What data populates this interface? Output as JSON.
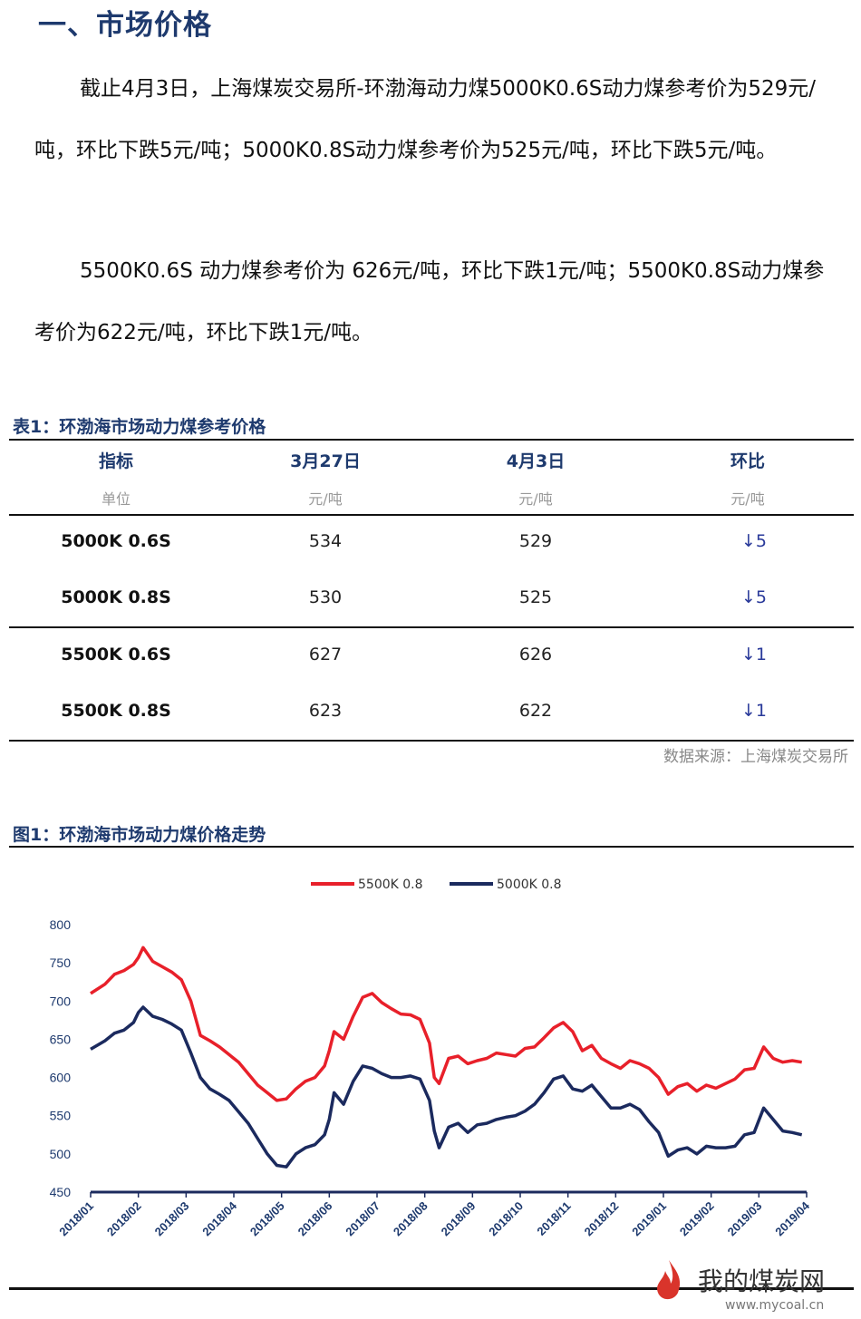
{
  "section_title": "一、市场价格",
  "paragraphs": {
    "p1": "截止4月3日，上海煤炭交易所-环渤海动力煤5000K0.6S动力煤参考价为529元/吨，环比下跌5元/吨；5000K0.8S动力煤参考价为525元/吨，环比下跌5元/吨。",
    "p2": "5500K0.6S 动力煤参考价为 626元/吨，环比下跌1元/吨；5500K0.8S动力煤参考价为622元/吨，环比下跌1元/吨。"
  },
  "table": {
    "caption": "表1：环渤海市场动力煤参考价格",
    "headers": [
      "指标",
      "3月27日",
      "4月3日",
      "环比"
    ],
    "units": [
      "单位",
      "元/吨",
      "元/吨",
      "元/吨"
    ],
    "rows": [
      {
        "name": "5000K 0.6S",
        "prev": "534",
        "curr": "529",
        "change": "↓5"
      },
      {
        "name": "5000K 0.8S",
        "prev": "530",
        "curr": "525",
        "change": "↓5"
      },
      {
        "name": "5500K 0.6S",
        "prev": "627",
        "curr": "626",
        "change": "↓1"
      },
      {
        "name": "5500K 0.8S",
        "prev": "623",
        "curr": "622",
        "change": "↓1"
      }
    ],
    "source": "数据来源：上海煤炭交易所"
  },
  "figure": {
    "caption": "图1：环渤海市场动力煤价格走势",
    "watermark": "我的煤炭网",
    "watermark_url": "www.mycoal.cn"
  },
  "chart_data": {
    "type": "line",
    "title": "",
    "xlabel": "",
    "ylabel": "",
    "ylim": [
      450,
      800
    ],
    "yticks": [
      450,
      500,
      550,
      600,
      650,
      700,
      750,
      800
    ],
    "x_categories": [
      "2018/01",
      "2018/02",
      "2018/03",
      "2018/04",
      "2018/05",
      "2018/06",
      "2018/07",
      "2018/08",
      "2018/09",
      "2018/10",
      "2018/11",
      "2018/12",
      "2019/01",
      "2019/02",
      "2019/03",
      "2019/04"
    ],
    "legend_position": "top",
    "grid": false,
    "series": [
      {
        "name": "5500K 0.8",
        "color": "#e8202a",
        "x": [
          0,
          0.3,
          0.5,
          0.7,
          0.9,
          1.0,
          1.1,
          1.3,
          1.5,
          1.7,
          1.9,
          2.1,
          2.3,
          2.5,
          2.7,
          2.9,
          3.1,
          3.3,
          3.5,
          3.7,
          3.9,
          4.1,
          4.3,
          4.5,
          4.7,
          4.9,
          5.0,
          5.1,
          5.3,
          5.5,
          5.7,
          5.9,
          6.1,
          6.3,
          6.5,
          6.7,
          6.9,
          7.1,
          7.2,
          7.3,
          7.5,
          7.7,
          7.9,
          8.1,
          8.3,
          8.5,
          8.7,
          8.9,
          9.1,
          9.3,
          9.5,
          9.7,
          9.9,
          10.1,
          10.3,
          10.5,
          10.7,
          10.9,
          11.1,
          11.3,
          11.5,
          11.7,
          11.9,
          12.1,
          12.3,
          12.5,
          12.7,
          12.9,
          13.1,
          13.3,
          13.5,
          13.7,
          13.9,
          14.1,
          14.3,
          14.5,
          14.7,
          14.9
        ],
        "values": [
          710,
          722,
          735,
          740,
          748,
          757,
          770,
          752,
          745,
          738,
          728,
          700,
          655,
          648,
          640,
          630,
          620,
          605,
          590,
          580,
          570,
          572,
          585,
          595,
          600,
          615,
          635,
          660,
          650,
          680,
          705,
          710,
          698,
          690,
          683,
          682,
          676,
          645,
          600,
          592,
          625,
          628,
          618,
          622,
          625,
          632,
          630,
          628,
          638,
          640,
          652,
          665,
          672,
          660,
          635,
          642,
          625,
          618,
          612,
          622,
          618,
          612,
          600,
          578,
          588,
          592,
          582,
          590,
          586,
          592,
          598,
          610,
          612,
          640,
          625,
          620,
          622,
          620
        ]
      },
      {
        "name": "5000K 0.8",
        "color": "#1b2a5e",
        "x": [
          0,
          0.3,
          0.5,
          0.7,
          0.9,
          1.0,
          1.1,
          1.3,
          1.5,
          1.7,
          1.9,
          2.1,
          2.3,
          2.5,
          2.7,
          2.9,
          3.1,
          3.3,
          3.5,
          3.7,
          3.9,
          4.1,
          4.3,
          4.5,
          4.7,
          4.9,
          5.0,
          5.1,
          5.3,
          5.5,
          5.7,
          5.9,
          6.1,
          6.3,
          6.5,
          6.7,
          6.9,
          7.1,
          7.2,
          7.3,
          7.5,
          7.7,
          7.9,
          8.1,
          8.3,
          8.5,
          8.7,
          8.9,
          9.1,
          9.3,
          9.5,
          9.7,
          9.9,
          10.1,
          10.3,
          10.5,
          10.7,
          10.9,
          11.1,
          11.3,
          11.5,
          11.7,
          11.9,
          12.1,
          12.3,
          12.5,
          12.7,
          12.9,
          13.1,
          13.3,
          13.5,
          13.7,
          13.9,
          14.1,
          14.3,
          14.5,
          14.7,
          14.9
        ],
        "values": [
          637,
          648,
          658,
          662,
          672,
          685,
          692,
          680,
          676,
          670,
          662,
          632,
          600,
          585,
          578,
          570,
          555,
          540,
          520,
          500,
          485,
          483,
          500,
          508,
          512,
          525,
          545,
          580,
          565,
          595,
          615,
          612,
          605,
          600,
          600,
          602,
          598,
          570,
          530,
          508,
          535,
          540,
          528,
          538,
          540,
          545,
          548,
          550,
          556,
          565,
          580,
          598,
          602,
          585,
          582,
          590,
          575,
          560,
          560,
          565,
          558,
          542,
          528,
          497,
          505,
          508,
          500,
          510,
          508,
          508,
          510,
          525,
          528,
          560,
          545,
          530,
          528,
          525
        ]
      }
    ]
  }
}
